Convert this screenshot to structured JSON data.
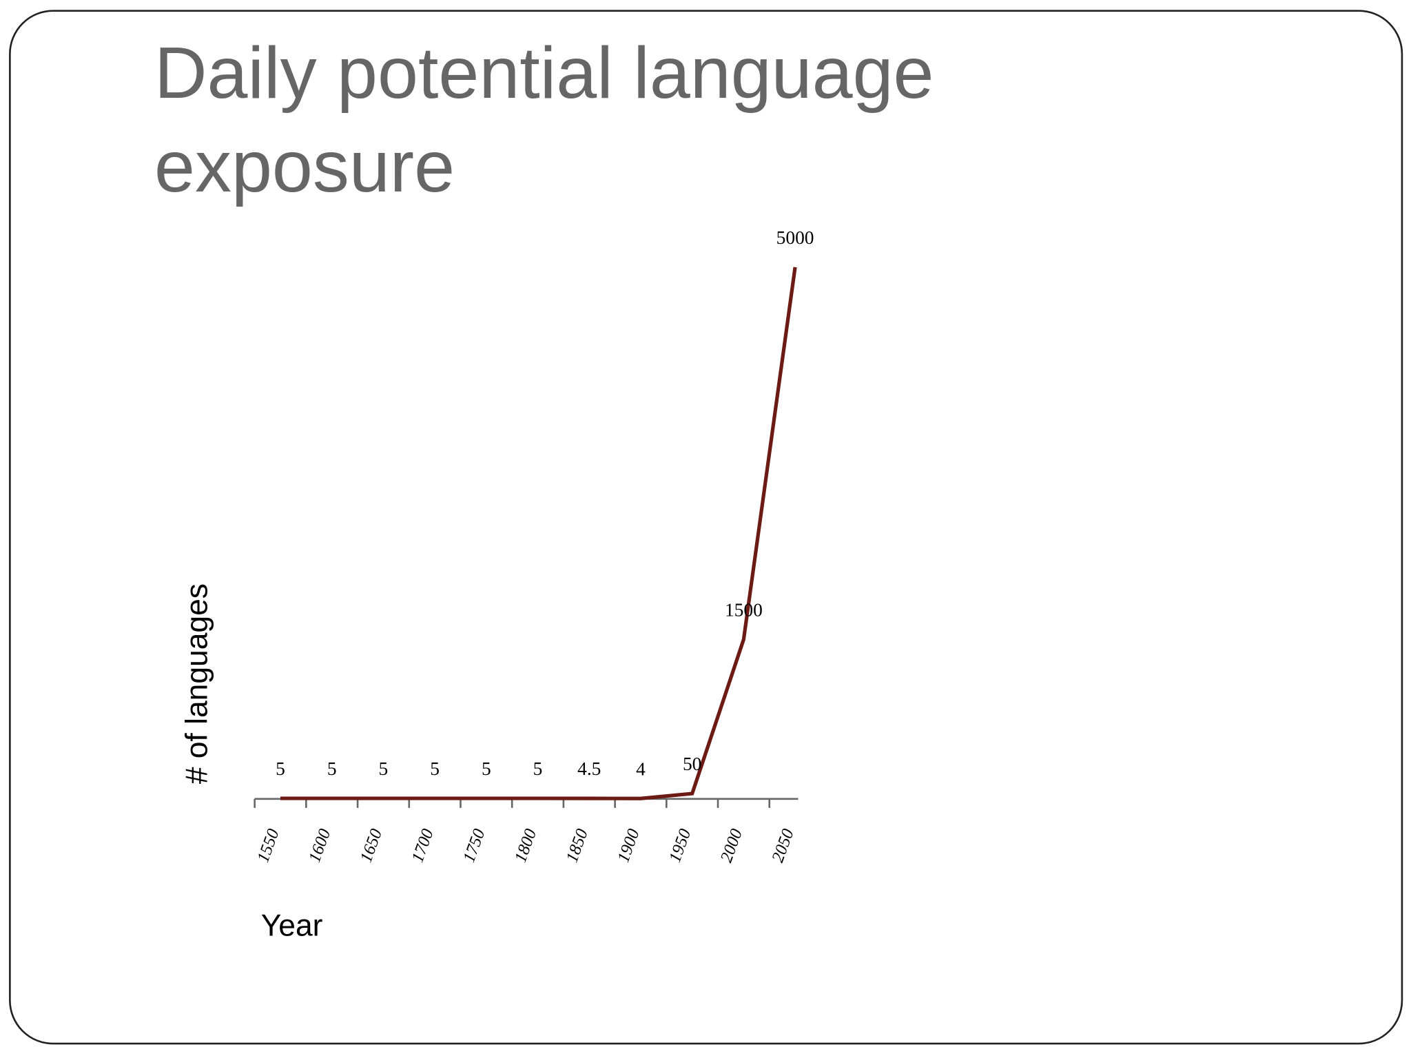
{
  "chart_data": {
    "type": "line",
    "title": "Daily potential language exposure",
    "x_label": "Year",
    "y_label": "# of languages",
    "categories": [
      "1550",
      "1600",
      "1650",
      "1700",
      "1750",
      "1800",
      "1850",
      "1900",
      "1950",
      "2000",
      "2050"
    ],
    "values": [
      5,
      5,
      5,
      5,
      5,
      5,
      4.5,
      4,
      50,
      1500,
      5000
    ],
    "color": "#6b1a14",
    "ylim": [
      0,
      5000
    ]
  }
}
